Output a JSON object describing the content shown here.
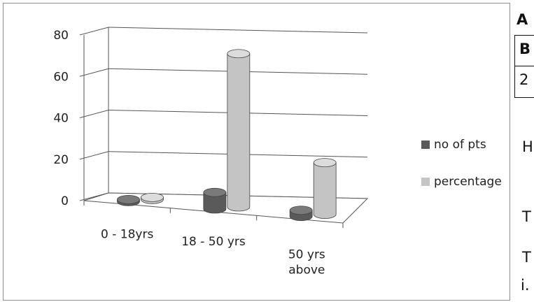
{
  "chart_data": {
    "type": "bar",
    "style": "3d-cylinder",
    "categories": [
      "0 - 18yrs",
      "18 - 50 yrs",
      "50 yrs above"
    ],
    "category_lines": [
      [
        "0 - 18yrs"
      ],
      [
        "18 - 50 yrs"
      ],
      [
        "50 yrs",
        "above"
      ]
    ],
    "series": [
      {
        "name": "no of pts",
        "values": [
          1,
          8,
          3
        ],
        "color": "#5a5a5a"
      },
      {
        "name": "percentage",
        "values": [
          1,
          74,
          25
        ],
        "color": "#c4c4c4"
      }
    ],
    "ylim": [
      0,
      80
    ],
    "yticks": [
      0,
      20,
      40,
      60,
      80
    ],
    "grid": true,
    "legend": "right"
  },
  "doc_fragments": {
    "row1": "A",
    "row2": "B",
    "row3": "2",
    "line1": "H",
    "line2": "T",
    "line3": "T",
    "line4": "i."
  }
}
